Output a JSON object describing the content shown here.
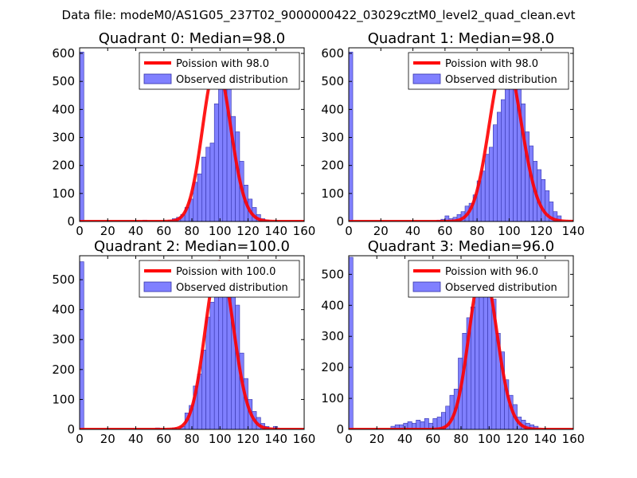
{
  "suptitle": "Data file: modeM0/AS1G05_237T02_9000000422_03029cztM0_level2_quad_clean.evt",
  "colors": {
    "bar_fill": "#8080ff",
    "bar_edge": "#3333aa",
    "curve": "#ff0000"
  },
  "chart_data": [
    {
      "type": "bar",
      "title": "Quadrant 0: Median=98.0",
      "xlim": [
        0,
        160
      ],
      "ylim": [
        0,
        620
      ],
      "xticks": [
        0,
        20,
        40,
        60,
        80,
        100,
        120,
        140,
        160
      ],
      "yticks": [
        0,
        100,
        200,
        300,
        400,
        500,
        600
      ],
      "bin_width": 3,
      "legend_curve": "Poission with 98.0",
      "legend_bars": "Observed distribution",
      "median": 98,
      "bins": [
        [
          0,
          605
        ],
        [
          45,
          5
        ],
        [
          63,
          5
        ],
        [
          66,
          10
        ],
        [
          69,
          15
        ],
        [
          72,
          25
        ],
        [
          75,
          50
        ],
        [
          78,
          80
        ],
        [
          81,
          140
        ],
        [
          84,
          170
        ],
        [
          87,
          230
        ],
        [
          90,
          265
        ],
        [
          93,
          280
        ],
        [
          96,
          420
        ],
        [
          99,
          510
        ],
        [
          102,
          560
        ],
        [
          105,
          540
        ],
        [
          108,
          375
        ],
        [
          111,
          320
        ],
        [
          114,
          215
        ],
        [
          117,
          130
        ],
        [
          120,
          80
        ],
        [
          123,
          50
        ],
        [
          126,
          25
        ],
        [
          129,
          10
        ],
        [
          132,
          5
        ]
      ]
    },
    {
      "type": "bar",
      "title": "Quadrant 1: Median=98.0",
      "xlim": [
        0,
        140
      ],
      "ylim": [
        0,
        620
      ],
      "xticks": [
        0,
        20,
        40,
        60,
        80,
        100,
        120,
        140
      ],
      "yticks": [
        0,
        100,
        200,
        300,
        400,
        500,
        600
      ],
      "bin_width": 2.5,
      "legend_curve": "Poission with 98.0",
      "legend_bars": "Observed distribution",
      "median": 98,
      "bins": [
        [
          0,
          605
        ],
        [
          55,
          5
        ],
        [
          57.5,
          8
        ],
        [
          60,
          20
        ],
        [
          62.5,
          10
        ],
        [
          65,
          15
        ],
        [
          67.5,
          25
        ],
        [
          70,
          35
        ],
        [
          72.5,
          55
        ],
        [
          75,
          65
        ],
        [
          77.5,
          95
        ],
        [
          80,
          145
        ],
        [
          82.5,
          180
        ],
        [
          85,
          240
        ],
        [
          87.5,
          265
        ],
        [
          90,
          345
        ],
        [
          92.5,
          390
        ],
        [
          95,
          435
        ],
        [
          97.5,
          545
        ],
        [
          100,
          580
        ],
        [
          102.5,
          540
        ],
        [
          105,
          510
        ],
        [
          107.5,
          420
        ],
        [
          110,
          320
        ],
        [
          112.5,
          270
        ],
        [
          115,
          215
        ],
        [
          117.5,
          185
        ],
        [
          120,
          150
        ],
        [
          122.5,
          110
        ],
        [
          125,
          70
        ],
        [
          127.5,
          35
        ],
        [
          130,
          20
        ]
      ]
    },
    {
      "type": "bar",
      "title": "Quadrant 2: Median=100.0",
      "xlim": [
        0,
        160
      ],
      "ylim": [
        0,
        580
      ],
      "xticks": [
        0,
        20,
        40,
        60,
        80,
        100,
        120,
        140,
        160
      ],
      "yticks": [
        0,
        100,
        200,
        300,
        400,
        500
      ],
      "bin_width": 3,
      "legend_curve": "Poission with 100.0",
      "legend_bars": "Observed distribution",
      "median": 100,
      "bins": [
        [
          0,
          560
        ],
        [
          54,
          5
        ],
        [
          66,
          5
        ],
        [
          72,
          10
        ],
        [
          75,
          55
        ],
        [
          78,
          80
        ],
        [
          81,
          145
        ],
        [
          84,
          185
        ],
        [
          87,
          265
        ],
        [
          90,
          375
        ],
        [
          93,
          425
        ],
        [
          96,
          460
        ],
        [
          99,
          520
        ],
        [
          102,
          560
        ],
        [
          105,
          520
        ],
        [
          108,
          465
        ],
        [
          111,
          415
        ],
        [
          114,
          255
        ],
        [
          117,
          170
        ],
        [
          120,
          100
        ],
        [
          123,
          60
        ],
        [
          126,
          40
        ],
        [
          129,
          20
        ],
        [
          132,
          10
        ],
        [
          138,
          10
        ]
      ]
    },
    {
      "type": "bar",
      "title": "Quadrant 3: Median=96.0",
      "xlim": [
        0,
        160
      ],
      "ylim": [
        0,
        560
      ],
      "xticks": [
        0,
        20,
        40,
        60,
        80,
        100,
        120,
        140,
        160
      ],
      "yticks": [
        0,
        100,
        200,
        300,
        400,
        500
      ],
      "bin_width": 3,
      "legend_curve": "Poission with 96.0",
      "legend_bars": "Observed distribution",
      "median": 96,
      "bins": [
        [
          0,
          555
        ],
        [
          30,
          10
        ],
        [
          33,
          15
        ],
        [
          36,
          15
        ],
        [
          39,
          20
        ],
        [
          42,
          25
        ],
        [
          45,
          20
        ],
        [
          48,
          30
        ],
        [
          51,
          25
        ],
        [
          54,
          35
        ],
        [
          57,
          20
        ],
        [
          60,
          35
        ],
        [
          63,
          40
        ],
        [
          66,
          55
        ],
        [
          69,
          75
        ],
        [
          72,
          110
        ],
        [
          75,
          130
        ],
        [
          78,
          230
        ],
        [
          81,
          310
        ],
        [
          84,
          360
        ],
        [
          87,
          395
        ],
        [
          90,
          440
        ],
        [
          93,
          500
        ],
        [
          96,
          520
        ],
        [
          99,
          480
        ],
        [
          102,
          420
        ],
        [
          105,
          310
        ],
        [
          108,
          250
        ],
        [
          111,
          160
        ],
        [
          114,
          110
        ],
        [
          117,
          80
        ],
        [
          120,
          40
        ],
        [
          123,
          30
        ],
        [
          126,
          20
        ],
        [
          129,
          15
        ],
        [
          132,
          10
        ]
      ]
    }
  ]
}
